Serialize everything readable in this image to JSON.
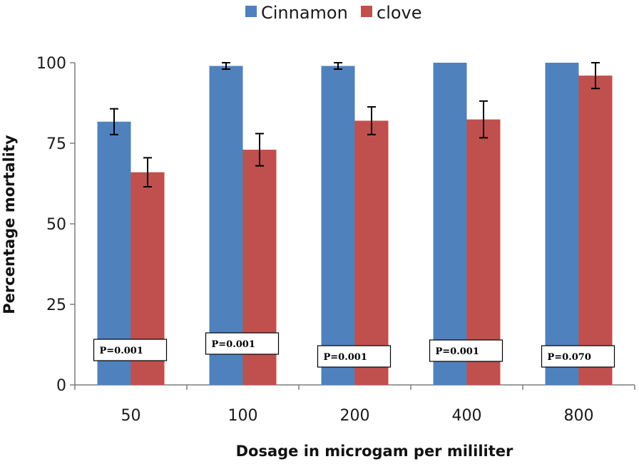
{
  "chart_data": {
    "type": "bar",
    "xlabel": "Dosage in microgam per mililiter",
    "ylabel": "Percentage  mortality",
    "ylim": [
      0,
      100
    ],
    "yticks": [
      0,
      25,
      50,
      75,
      100
    ],
    "grid": false,
    "legend_position": "top",
    "categories": [
      "50",
      "100",
      "200",
      "400",
      "800"
    ],
    "series": [
      {
        "name": "Cinnamon",
        "color": "#4f81bd",
        "values": [
          81.7,
          99.0,
          99.0,
          100.0,
          100.0
        ],
        "errors": [
          4.0,
          1.0,
          1.0,
          0,
          0
        ]
      },
      {
        "name": "clove",
        "color": "#c0504d",
        "values": [
          66.0,
          73.0,
          82.0,
          82.4,
          96.0
        ],
        "errors": [
          4.5,
          5.0,
          4.3,
          5.7,
          4.0
        ]
      }
    ],
    "annotations": [
      "P=0.001",
      "P=0.001",
      "P=0.001",
      "P=0.001",
      "P=0.070"
    ]
  }
}
